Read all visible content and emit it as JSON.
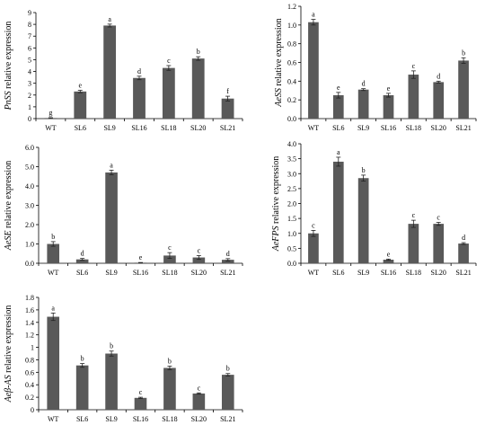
{
  "figure": {
    "bar_color": "#595959",
    "axis_color": "#000000"
  },
  "chart_data": [
    {
      "type": "bar",
      "title": "",
      "ylabel": "PnSS relative expression",
      "ylabel_gene": "PnSS",
      "ylabel_rest": " relative expression",
      "xlabel": "",
      "categories": [
        "WT",
        "SL6",
        "SL9",
        "SL16",
        "SL18",
        "SL20",
        "SL21"
      ],
      "values": [
        0.05,
        2.3,
        7.9,
        3.45,
        4.3,
        5.1,
        1.7
      ],
      "errors": [
        0.03,
        0.1,
        0.12,
        0.15,
        0.2,
        0.15,
        0.2
      ],
      "letters": [
        "g",
        "e",
        "a",
        "d",
        "c",
        "b",
        "f"
      ],
      "ylim": [
        0,
        9
      ],
      "yticks": [
        "0",
        "1",
        "2",
        "3",
        "4",
        "5",
        "6",
        "7",
        "8",
        "9"
      ]
    },
    {
      "type": "bar",
      "title": "",
      "ylabel": "AeSS relative expression",
      "ylabel_gene": "AeSS",
      "ylabel_rest": " relative expression",
      "xlabel": "",
      "categories": [
        "WT",
        "SL6",
        "SL9",
        "SL16",
        "SL18",
        "SL20",
        "SL21"
      ],
      "values": [
        1.03,
        0.25,
        0.31,
        0.25,
        0.47,
        0.39,
        0.62
      ],
      "errors": [
        0.03,
        0.03,
        0.01,
        0.02,
        0.04,
        0.01,
        0.03
      ],
      "letters": [
        "a",
        "e",
        "d",
        "e",
        "c",
        "d",
        "b"
      ],
      "ylim": [
        0,
        1.2
      ],
      "yticks": [
        "0.0",
        "0.2",
        "0.4",
        "0.6",
        "0.8",
        "1.0",
        "1.2"
      ]
    },
    {
      "type": "bar",
      "title": "",
      "ylabel": "AeSE relative expression",
      "ylabel_gene": "AeSE",
      "ylabel_rest": " relative expression",
      "xlabel": "",
      "categories": [
        "WT",
        "SL6",
        "SL9",
        "SL16",
        "SL18",
        "SL20",
        "SL21"
      ],
      "values": [
        1.0,
        0.2,
        4.7,
        0.03,
        0.4,
        0.3,
        0.18
      ],
      "errors": [
        0.12,
        0.05,
        0.12,
        0.01,
        0.15,
        0.1,
        0.06
      ],
      "letters": [
        "b",
        "d",
        "a",
        "e",
        "c",
        "c",
        "d"
      ],
      "ylim": [
        0,
        6
      ],
      "yticks": [
        "0.0",
        "1.0",
        "2.0",
        "3.0",
        "4.0",
        "5.0",
        "6.0"
      ]
    },
    {
      "type": "bar",
      "title": "",
      "ylabel": "AeFPS relative expression",
      "ylabel_gene": "AeFPS",
      "ylabel_rest": " relative expression",
      "xlabel": "",
      "categories": [
        "WT",
        "SL6",
        "SL9",
        "SL16",
        "SL18",
        "SL20",
        "SL21"
      ],
      "values": [
        1.0,
        3.4,
        2.85,
        0.12,
        1.32,
        1.32,
        0.66
      ],
      "errors": [
        0.1,
        0.15,
        0.1,
        0.02,
        0.12,
        0.05,
        0.03
      ],
      "letters": [
        "c",
        "a",
        "b",
        "e",
        "c",
        "c",
        "d"
      ],
      "ylim": [
        0,
        4
      ],
      "yticks": [
        "0.0",
        "0.5",
        "1.0",
        "1.5",
        "2.0",
        "2.5",
        "3.0",
        "3.5",
        "4.0"
      ]
    },
    {
      "type": "bar",
      "title": "",
      "ylabel": "Aeβ-AS relative expression",
      "ylabel_gene": "Aeβ-AS",
      "ylabel_rest": " relative expression",
      "xlabel": "",
      "categories": [
        "WT",
        "SL6",
        "SL9",
        "SL16",
        "SL18",
        "SL20",
        "SL21"
      ],
      "values": [
        1.49,
        0.71,
        0.9,
        0.19,
        0.67,
        0.26,
        0.56
      ],
      "errors": [
        0.06,
        0.03,
        0.04,
        0.01,
        0.03,
        0.01,
        0.02
      ],
      "letters": [
        "a",
        "b",
        "b",
        "c",
        "b",
        "c",
        "b"
      ],
      "ylim": [
        0,
        1.8
      ],
      "yticks": [
        "0",
        "0.2",
        "0.4",
        "0.6",
        "0.8",
        "1",
        "1.2",
        "1.4",
        "1.6",
        "1.8"
      ]
    }
  ]
}
